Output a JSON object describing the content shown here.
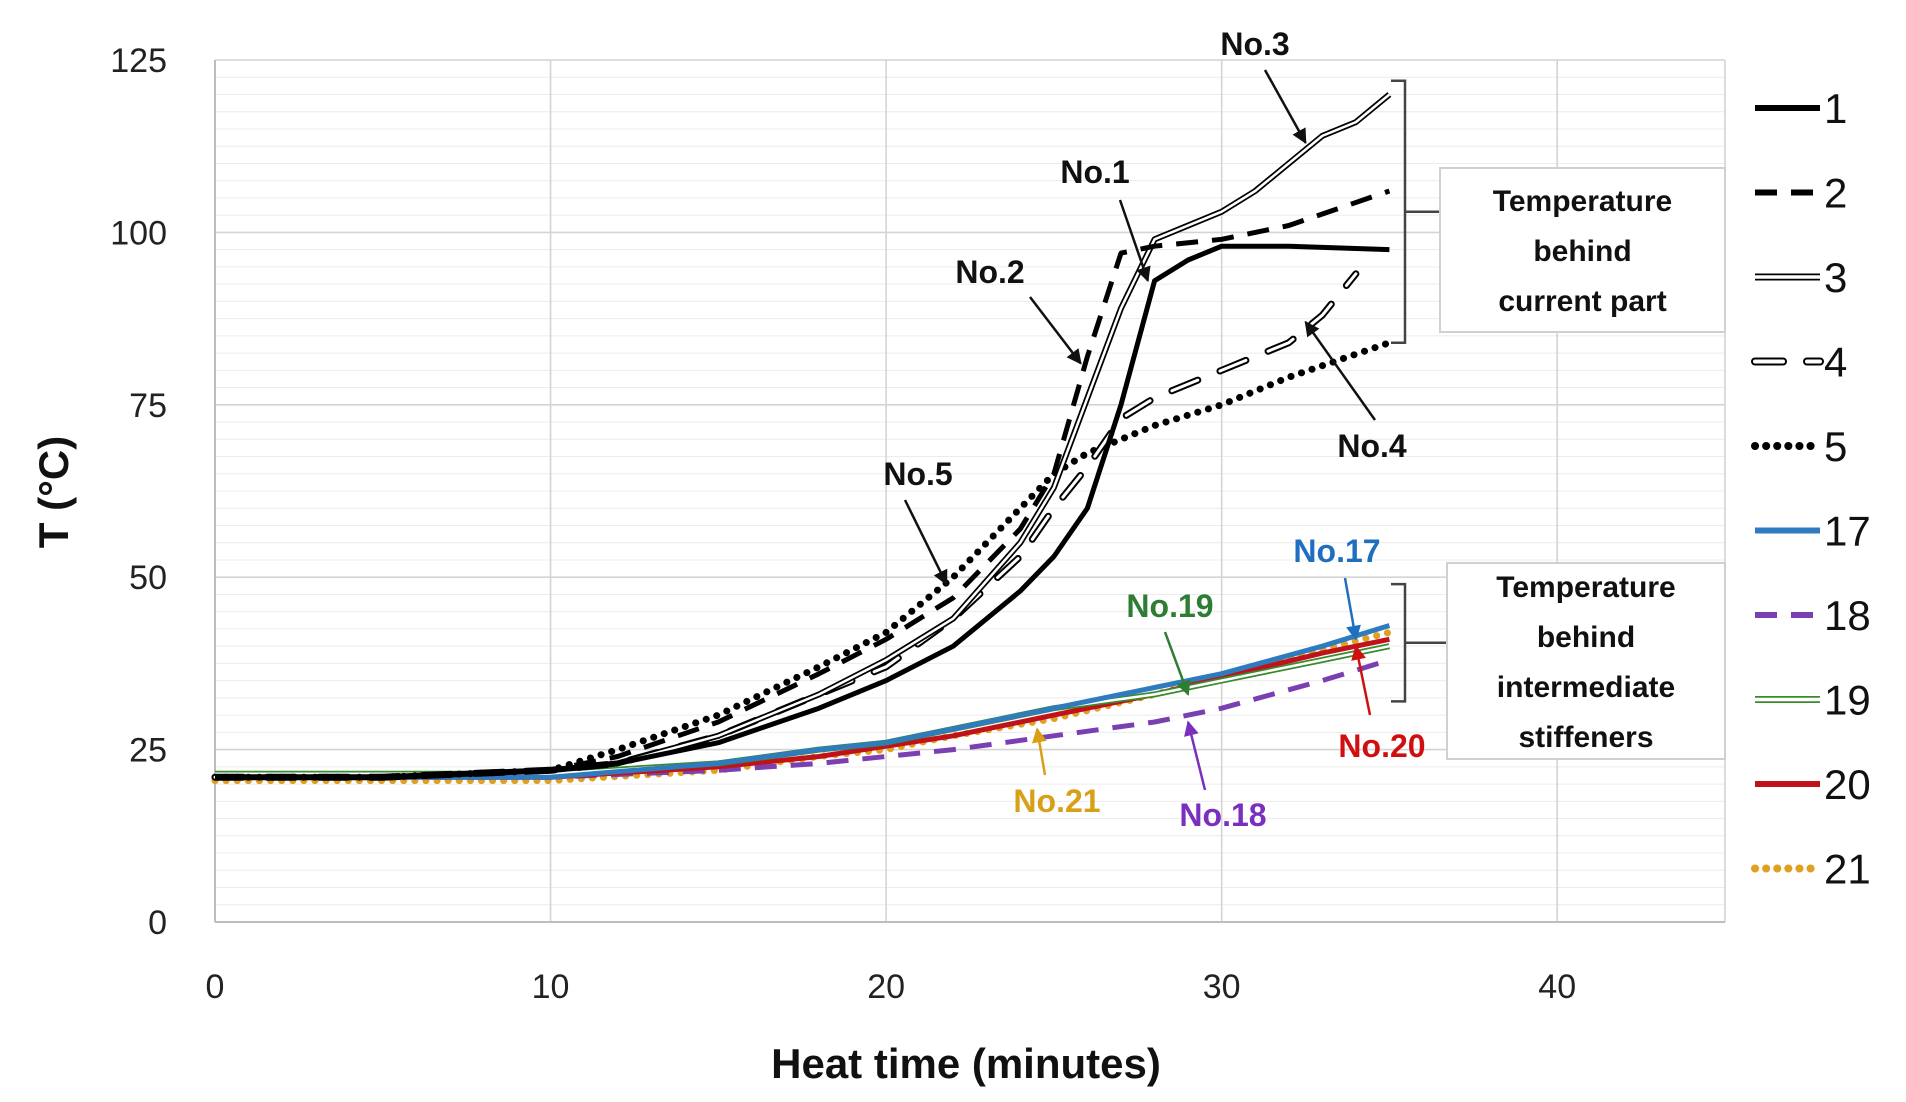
{
  "chart_data": {
    "type": "line",
    "xlabel": "Heat time (minutes)",
    "ylabel": "T (°C)",
    "xlim": [
      0,
      45
    ],
    "ylim": [
      0,
      125
    ],
    "xticks": [
      0,
      10,
      20,
      30,
      40
    ],
    "yticks": [
      0,
      25,
      50,
      75,
      100,
      125
    ],
    "grid": true,
    "legend_position": "right",
    "series": [
      {
        "name": "1",
        "style": "solid",
        "color": "#000000",
        "x": [
          0,
          5,
          10,
          12,
          15,
          18,
          20,
          22,
          24,
          25,
          26,
          27,
          28,
          29,
          30,
          32,
          35
        ],
        "y": [
          21,
          21,
          22,
          23,
          26,
          31,
          35,
          40,
          48,
          53,
          60,
          75,
          93,
          96,
          98,
          98,
          97.5
        ]
      },
      {
        "name": "2",
        "style": "dash",
        "color": "#000000",
        "x": [
          0,
          5,
          10,
          12,
          15,
          18,
          20,
          22,
          24,
          25,
          26,
          27,
          28,
          30,
          32,
          35
        ],
        "y": [
          21,
          21,
          22,
          24,
          29,
          36,
          41,
          47,
          57,
          65,
          82,
          97,
          98,
          99,
          101,
          106
        ]
      },
      {
        "name": "3",
        "style": "double",
        "color": "#000000",
        "x": [
          0,
          5,
          10,
          12,
          15,
          18,
          20,
          22,
          24,
          25,
          26,
          27,
          28,
          30,
          31,
          32,
          33,
          34,
          35
        ],
        "y": [
          21,
          21,
          22,
          23,
          27,
          33,
          38,
          44,
          55,
          63,
          76,
          89,
          99,
          103,
          106,
          110,
          114,
          116,
          120
        ]
      },
      {
        "name": "4",
        "style": "longdash-hollow",
        "color": "#000000",
        "x": [
          0,
          5,
          10,
          12,
          15,
          18,
          20,
          22,
          24,
          25,
          26,
          27,
          28,
          30,
          32,
          33,
          34
        ],
        "y": [
          21,
          21,
          22,
          23,
          27,
          33,
          37,
          44,
          53,
          60,
          66,
          73,
          76,
          80,
          84,
          88,
          94
        ]
      },
      {
        "name": "5",
        "style": "dot",
        "color": "#000000",
        "x": [
          0,
          5,
          10,
          12,
          15,
          18,
          20,
          22,
          24,
          25,
          26,
          28,
          30,
          32,
          35
        ],
        "y": [
          21,
          21,
          22,
          25,
          30,
          37,
          42,
          50,
          60,
          65,
          68,
          72,
          75,
          79,
          84
        ]
      },
      {
        "name": "17",
        "style": "solid",
        "color": "#2f7bbf",
        "x": [
          0,
          5,
          10,
          15,
          18,
          20,
          22,
          25,
          28,
          30,
          33,
          35
        ],
        "y": [
          21,
          21,
          21,
          23,
          25,
          26,
          28,
          31,
          34,
          36,
          40,
          43
        ]
      },
      {
        "name": "18",
        "style": "dash",
        "color": "#7a3fb0",
        "x": [
          0,
          5,
          10,
          15,
          18,
          20,
          22,
          25,
          28,
          30,
          33,
          35
        ],
        "y": [
          21,
          21,
          21,
          22,
          23,
          24,
          25,
          27,
          29,
          31,
          35,
          38
        ]
      },
      {
        "name": "19",
        "style": "double",
        "color": "#3a8a2e",
        "x": [
          0,
          5,
          10,
          15,
          18,
          20,
          22,
          25,
          28,
          30,
          33,
          35
        ],
        "y": [
          21.5,
          21.5,
          21.5,
          23,
          25,
          26,
          28,
          31,
          33,
          35,
          38,
          40
        ]
      },
      {
        "name": "20",
        "style": "solid",
        "color": "#c0121a",
        "x": [
          0,
          5,
          10,
          15,
          18,
          20,
          22,
          25,
          28,
          30,
          33,
          35
        ],
        "y": [
          21,
          21,
          21,
          22.5,
          24,
          25.5,
          27,
          30,
          33,
          35.5,
          39,
          41
        ]
      },
      {
        "name": "21",
        "style": "dot",
        "color": "#e0a020",
        "x": [
          0,
          5,
          10,
          15,
          18,
          20,
          22,
          25,
          28,
          30,
          33,
          35
        ],
        "y": [
          20.5,
          20.5,
          20.5,
          22,
          24,
          25,
          27,
          29.5,
          33,
          35.5,
          39.5,
          42
        ]
      }
    ],
    "annotations": [
      {
        "text": "No.3",
        "color": "#111111",
        "target": [
          32.5,
          113
        ]
      },
      {
        "text": "No.1",
        "color": "#111111",
        "target": [
          27.8,
          93
        ]
      },
      {
        "text": "No.2",
        "color": "#111111",
        "target": [
          25.8,
          81
        ]
      },
      {
        "text": "No.4",
        "color": "#111111",
        "target": [
          32.5,
          87
        ]
      },
      {
        "text": "No.5",
        "color": "#111111",
        "target": [
          21.8,
          49
        ]
      },
      {
        "text": "No.19",
        "color": "#2e7d32",
        "target": [
          29,
          33
        ]
      },
      {
        "text": "No.17",
        "color": "#1f6fc0",
        "target": [
          34,
          41
        ]
      },
      {
        "text": "No.20",
        "color": "#d01010",
        "target": [
          34,
          40
        ]
      },
      {
        "text": "No.21",
        "color": "#d8a017",
        "target": [
          24.5,
          28
        ]
      },
      {
        "text": "No.18",
        "color": "#7b2fbe",
        "target": [
          29,
          29
        ]
      }
    ],
    "boxes": [
      {
        "lines": [
          "Temperature",
          "behind",
          "current part"
        ],
        "bracket_range": [
          84,
          122
        ]
      },
      {
        "lines": [
          "Temperature",
          "behind",
          "intermediate",
          "stiffeners"
        ],
        "bracket_range": [
          32,
          49
        ]
      }
    ]
  }
}
